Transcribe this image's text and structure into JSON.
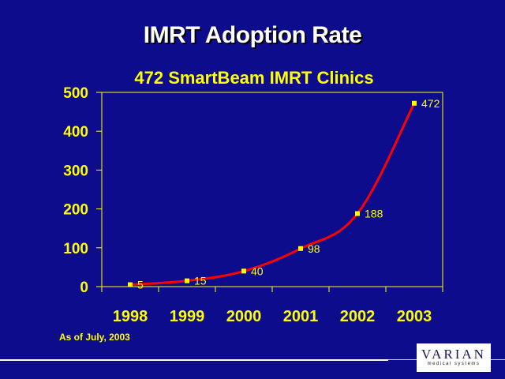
{
  "slide": {
    "title": "IMRT Adoption Rate",
    "note": "As of July, 2003",
    "logo": {
      "word": "VARIAN",
      "sub": "medical systems"
    }
  },
  "chart_data": {
    "type": "line",
    "title": "472 SmartBeam IMRT Clinics",
    "xlabel": "",
    "ylabel": "",
    "categories": [
      "1998",
      "1999",
      "2000",
      "2001",
      "2002",
      "2003"
    ],
    "series": [
      {
        "name": "SmartBeam IMRT Clinics",
        "values": [
          5,
          15,
          40,
          98,
          188,
          472
        ],
        "color": "#ff0000",
        "marker_color": "#ffff00"
      }
    ],
    "data_labels": [
      "5",
      "15",
      "40",
      "98",
      "188",
      "472"
    ],
    "ylim": [
      0,
      500
    ],
    "yticks": [
      0,
      100,
      200,
      300,
      400,
      500
    ],
    "ytick_labels": [
      "0",
      "100",
      "200",
      "300",
      "400",
      "500"
    ],
    "grid": false,
    "legend": "none",
    "colors": {
      "axis": "#ffff00",
      "background": "#0c0c8c"
    }
  }
}
